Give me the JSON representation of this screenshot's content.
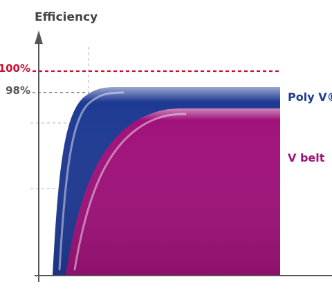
{
  "chart_data": {
    "type": "area",
    "ylabel": "Efficiency",
    "y_ticks": [
      {
        "label": "100%",
        "value": 100,
        "color": "#c8102e",
        "line_style": "dashed"
      },
      {
        "label": "98%",
        "value": 98,
        "color": "#555555",
        "line_style": "dashed"
      }
    ],
    "series": [
      {
        "name": "Poly V® belt",
        "color": "#1f3a93",
        "plateau": 98
      },
      {
        "name": "V belt",
        "color": "#a0127a",
        "plateau": 96
      }
    ],
    "grid": false,
    "legend": "right-labels"
  }
}
